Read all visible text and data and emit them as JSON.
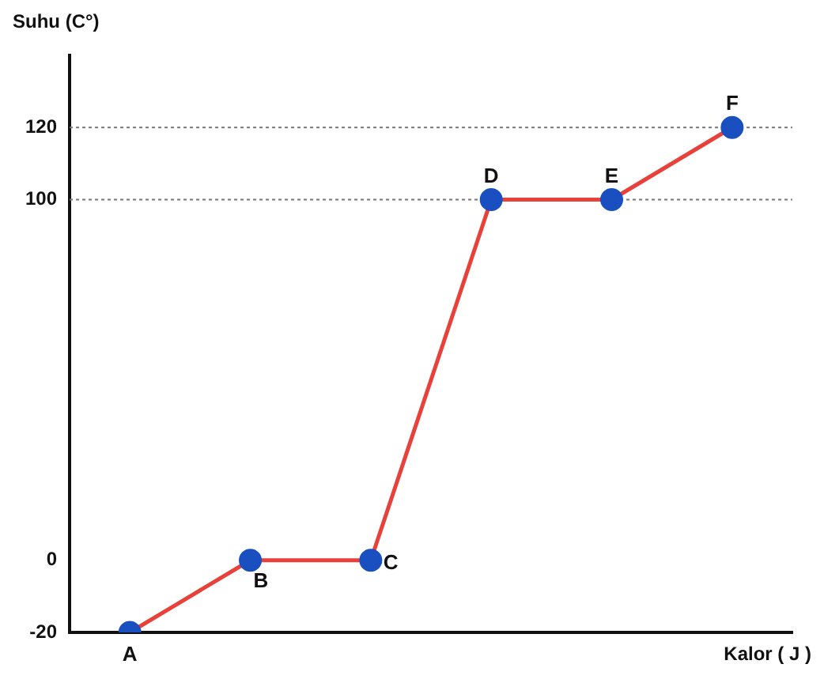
{
  "chart_data": {
    "type": "line",
    "xlabel": "Kalor ( J )",
    "ylabel": "Suhu (C°)",
    "categories": [
      "A",
      "B",
      "C",
      "D",
      "E",
      "F"
    ],
    "series": [
      {
        "color": "#e8413a",
        "colors": [
          "#1a4fc0",
          "#1a4fc0",
          "#1a4fc0",
          "#1a4fc0",
          "#1a4fc0",
          "#1a4fc0"
        ],
        "values": [
          -20,
          0,
          0,
          100,
          100,
          120
        ]
      }
    ],
    "ylim": [
      -20,
      140
    ],
    "yticks": [
      -20,
      0,
      100,
      120
    ],
    "grid": false,
    "legend": false,
    "tick_labels": "y",
    "marker": "circle",
    "line_style": "solid",
    "ref_lines": [
      {
        "axis": "y",
        "value": 120,
        "color": "#777777",
        "line_style": "dotted"
      },
      {
        "axis": "y",
        "value": 100,
        "color": "#777777",
        "line_style": "dotted"
      }
    ]
  }
}
